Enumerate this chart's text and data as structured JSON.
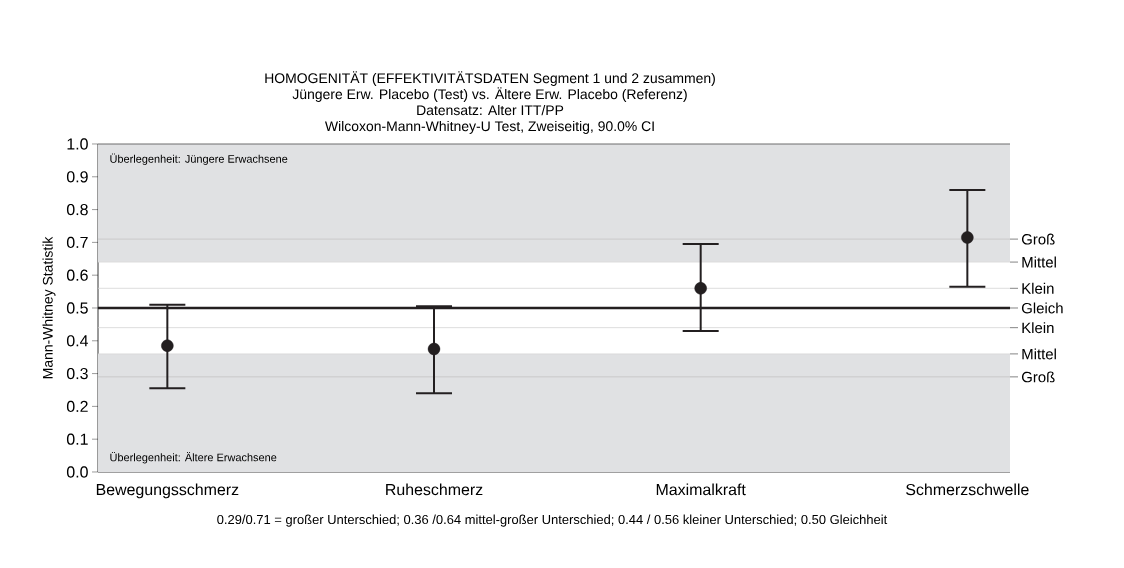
{
  "chart_data": {
    "type": "scatter",
    "title": "HOMOGENITÄT (EFFEKTIVITÄTSDATEN Segment 1 und 2 zusammen)",
    "subtitle": "Wilcoxon-Mann-Whitney-U Test, Zweiseitig, 90.0% CI",
    "ylabel": "Mann-Whitney Statistik",
    "annotations": [
      "Jüngere Erw. Placebo (Test) vs. Ältere Erw. Placebo (Referenz)",
      "Datensatz: Alter ITT/PP",
      "Überlegenheit: Jüngere Erwachsene",
      "Überlegenheit: Ältere Erwachsene",
      "0.29/0.71 = großer Unterschied; 0.36 /0.64 mittel-großer Unterschied; 0.44 / 0.56 kleiner Unterschied; 0.50 Gleichheit"
    ],
    "categories": [
      "Bewegungsschmerz",
      "Ruheschmerz",
      "Maximalkraft",
      "Schmerzschwelle"
    ],
    "values": [
      0.385,
      0.375,
      0.56,
      0.715
    ],
    "errors": [
      [
        0.255,
        0.51
      ],
      [
        0.24,
        0.505
      ],
      [
        0.43,
        0.695
      ],
      [
        0.565,
        0.86
      ]
    ],
    "color": "#231f20",
    "marker": "circle",
    "ylim": [
      0,
      1
    ],
    "yticks": [
      {
        "value": 0,
        "label": "0.0"
      },
      0.1,
      0.2,
      0.3,
      0.4,
      0.5,
      0.6,
      0.7,
      0.8,
      0.9,
      {
        "value": 1,
        "label": "1.0"
      }
    ],
    "ref_lines": [
      {
        "axis": "y",
        "value": 0.29,
        "label": "Groß",
        "color": "#c4c4c4"
      },
      {
        "axis": "y",
        "value": 0.36,
        "label": "Mittel",
        "color": "#d8d8d8"
      },
      {
        "axis": "y",
        "value": 0.44,
        "label": "Klein",
        "color": "#d4d4d4"
      },
      {
        "axis": "y",
        "value": 0.5,
        "label": "Gleich",
        "color": "#231f20"
      },
      {
        "axis": "y",
        "value": 0.56,
        "label": "Klein",
        "color": "#d4d4d4"
      },
      {
        "axis": "y",
        "value": 0.64,
        "label": "Mittel",
        "color": "#d8d8d8"
      },
      {
        "axis": "y",
        "value": 0.71,
        "label": "Groß",
        "color": "#c4c4c4"
      }
    ],
    "bands": [
      {
        "axis": "y",
        "from": 0,
        "to": 0.36,
        "color": "#e0e1e3"
      },
      {
        "axis": "y",
        "from": 0.64,
        "to": 1,
        "color": "#e0e1e3"
      }
    ]
  }
}
